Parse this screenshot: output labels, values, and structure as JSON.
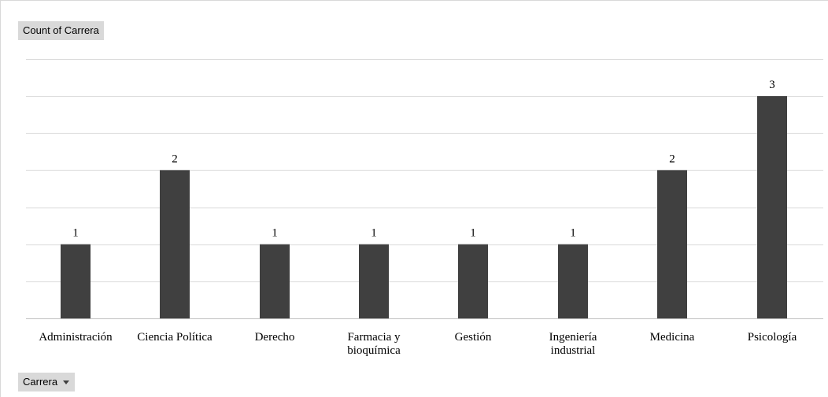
{
  "field_buttons": {
    "values_field": "Count of Carrera",
    "axis_field": "Carrera",
    "dropdown_icon": "chevron-down-icon"
  },
  "colors": {
    "bar": "#404040",
    "gridline": "#d9d9d9",
    "axis": "#bfbfbf",
    "field_button_bg": "#d9d9d9"
  },
  "chart_data": {
    "type": "bar",
    "categories": [
      [
        "Administración"
      ],
      [
        "Ciencia Política"
      ],
      [
        "Derecho"
      ],
      [
        "Farmacia y",
        "bioquímica"
      ],
      [
        "Gestión"
      ],
      [
        "Ingeniería",
        "industrial"
      ],
      [
        "Medicina"
      ],
      [
        "Psicología"
      ]
    ],
    "values": [
      1,
      2,
      1,
      1,
      1,
      1,
      2,
      3
    ],
    "data_labels": true,
    "ylim": [
      0,
      3.5
    ],
    "y_gridline_step": 0.5,
    "grid": true,
    "legend": "none"
  }
}
